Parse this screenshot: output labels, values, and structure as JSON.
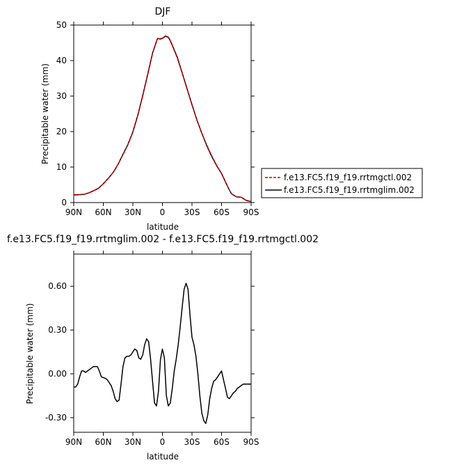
{
  "chart_data": [
    {
      "type": "line",
      "title": "DJF",
      "xlabel": "latitude",
      "ylabel": "Precipitable water (mm)",
      "xlim": [
        90,
        -90
      ],
      "ylim": [
        0,
        50
      ],
      "xticks": [
        90,
        60,
        30,
        0,
        -30,
        -60,
        -90
      ],
      "xticklabels": [
        "90N",
        "60N",
        "30N",
        "0",
        "30S",
        "60S",
        "90S"
      ],
      "yticks": [
        0,
        10,
        20,
        30,
        40,
        50
      ],
      "yticklabels": [
        "0",
        "10",
        "20",
        "30",
        "40",
        "50"
      ],
      "legend_placement": "right",
      "series": [
        {
          "name": "f.e13.FC5.f19_f19.rrtmgctl.002",
          "color": "#cc0000",
          "dash": "dashed",
          "x": [
            90,
            80,
            75,
            70,
            65,
            60,
            55,
            50,
            45,
            40,
            35,
            30,
            25,
            20,
            15,
            10,
            5,
            2,
            0,
            -3,
            -6,
            -8,
            -10,
            -15,
            -20,
            -25,
            -30,
            -35,
            -40,
            -45,
            -50,
            -55,
            -60,
            -65,
            -68,
            -70,
            -75,
            -80,
            -85,
            -90
          ],
          "y": [
            2.2,
            2.3,
            2.7,
            3.3,
            4.0,
            5.3,
            6.8,
            8.5,
            10.8,
            13.5,
            16.3,
            19.8,
            24.5,
            30.0,
            36.0,
            42.0,
            46.3,
            46.0,
            46.2,
            46.8,
            46.5,
            45.5,
            44.2,
            40.8,
            36.5,
            32.0,
            27.5,
            23.2,
            19.5,
            16.2,
            13.2,
            10.5,
            8.2,
            5.2,
            3.5,
            2.5,
            1.6,
            1.5,
            0.6,
            0.3
          ]
        },
        {
          "name": "f.e13.FC5.f19_f19.rrtmglim.002",
          "color": "#000000",
          "dash": "solid",
          "x": [
            90,
            80,
            75,
            70,
            65,
            60,
            55,
            50,
            45,
            40,
            35,
            30,
            25,
            20,
            15,
            10,
            5,
            2,
            0,
            -3,
            -6,
            -8,
            -10,
            -15,
            -20,
            -25,
            -30,
            -35,
            -40,
            -45,
            -50,
            -55,
            -60,
            -65,
            -68,
            -70,
            -75,
            -80,
            -85,
            -90
          ],
          "y": [
            2.1,
            2.3,
            2.7,
            3.3,
            4.0,
            5.3,
            6.8,
            8.5,
            10.8,
            13.6,
            16.4,
            19.9,
            24.6,
            30.2,
            36.1,
            42.1,
            46.2,
            46.1,
            46.3,
            46.9,
            46.6,
            45.6,
            44.3,
            41.0,
            36.6,
            32.1,
            27.6,
            23.3,
            19.5,
            16.0,
            13.0,
            10.4,
            8.2,
            5.2,
            3.5,
            2.5,
            1.6,
            1.5,
            0.6,
            0.3
          ]
        }
      ]
    },
    {
      "type": "line",
      "title": "f.e13.FC5.f19_f19.rrtmglim.002 - f.e13.FC5.f19_f19.rrtmgctl.002",
      "xlabel": "latitude",
      "ylabel": "Precipitable water (mm)",
      "xlim": [
        90,
        -90
      ],
      "ylim": [
        -0.4,
        0.82
      ],
      "xticks": [
        90,
        60,
        30,
        0,
        -30,
        -60,
        -90
      ],
      "xticklabels": [
        "90N",
        "60N",
        "30N",
        "0",
        "30S",
        "60S",
        "90S"
      ],
      "yticks": [
        -0.3,
        0,
        0.3,
        0.6
      ],
      "yticklabels": [
        "-0.30",
        "0.00",
        "0.30",
        "0.60"
      ],
      "series": [
        {
          "color": "#000000",
          "dash": "solid",
          "x": [
            90,
            88,
            86,
            84,
            82,
            80,
            78,
            76,
            74,
            72,
            70,
            66,
            64,
            62,
            58,
            56,
            54,
            52,
            50,
            48,
            46,
            44,
            42,
            40,
            38,
            36,
            34,
            32,
            30,
            28,
            26,
            24,
            22,
            20,
            18,
            16,
            14,
            12,
            10,
            8,
            6,
            4,
            2,
            0,
            -2,
            -4,
            -6,
            -8,
            -10,
            -12,
            -14,
            -16,
            -18,
            -20,
            -22,
            -24,
            -26,
            -28,
            -30,
            -32,
            -34,
            -36,
            -38,
            -40,
            -42,
            -44,
            -46,
            -48,
            -50,
            -52,
            -54,
            -56,
            -58,
            -60,
            -62,
            -64,
            -66,
            -68,
            -70,
            -72,
            -74,
            -76,
            -78,
            -80,
            -82,
            -84,
            -86,
            -88,
            -90
          ],
          "y": [
            -0.09,
            -0.09,
            -0.07,
            -0.02,
            0.02,
            0.02,
            0.01,
            0.02,
            0.03,
            0.04,
            0.05,
            0.05,
            0.02,
            -0.02,
            -0.03,
            -0.04,
            -0.06,
            -0.08,
            -0.12,
            -0.17,
            -0.19,
            -0.18,
            -0.07,
            0.05,
            0.11,
            0.12,
            0.12,
            0.13,
            0.15,
            0.17,
            0.16,
            0.11,
            0.1,
            0.13,
            0.2,
            0.24,
            0.22,
            0.1,
            -0.05,
            -0.2,
            -0.22,
            -0.12,
            0.1,
            0.17,
            0.11,
            -0.15,
            -0.22,
            -0.2,
            -0.1,
            0.02,
            0.1,
            0.2,
            0.32,
            0.45,
            0.58,
            0.62,
            0.58,
            0.4,
            0.25,
            0.2,
            0.12,
            0.0,
            -0.15,
            -0.27,
            -0.32,
            -0.34,
            -0.28,
            -0.17,
            -0.1,
            -0.05,
            -0.04,
            -0.02,
            0.0,
            0.02,
            -0.04,
            -0.1,
            -0.16,
            -0.17,
            -0.15,
            -0.13,
            -0.12,
            -0.1,
            -0.09,
            -0.08,
            -0.07,
            -0.07,
            -0.07,
            -0.07,
            -0.07
          ]
        }
      ]
    }
  ]
}
